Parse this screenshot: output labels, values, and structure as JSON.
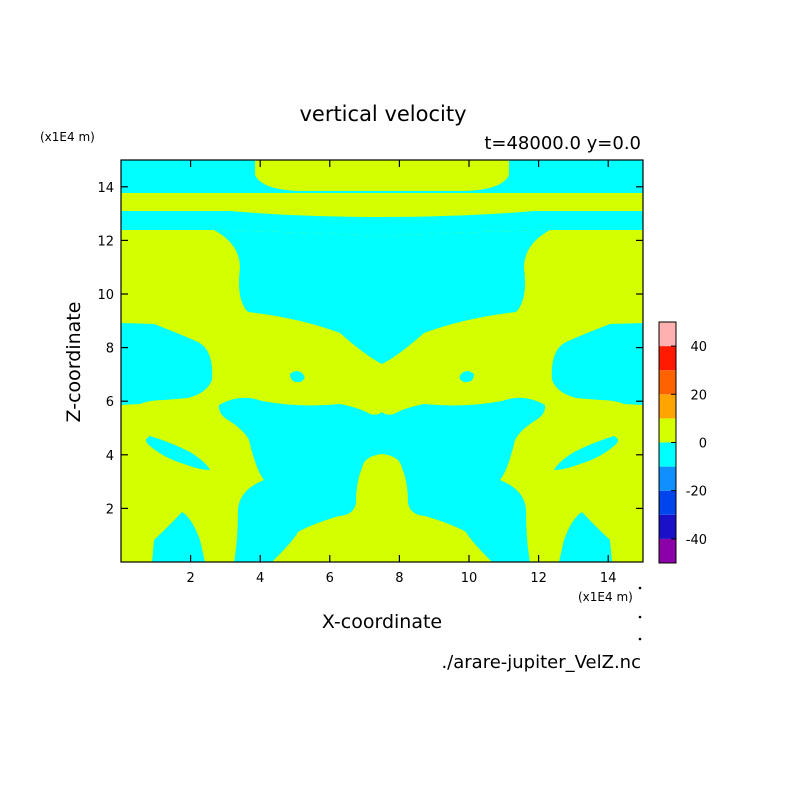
{
  "chart_data": {
    "type": "heatmap",
    "title": "vertical velocity",
    "subtitle": "t=48000.0 y=0.0",
    "xlabel": "X-coordinate",
    "ylabel": "Z-coordinate",
    "x_unit": "(x1E4 m)",
    "y_unit": "(x1E4 m)",
    "source": "./arare-jupiter_VelZ.nc",
    "xlim": [
      0,
      15
    ],
    "ylim": [
      0,
      15
    ],
    "xticks": [
      2,
      4,
      6,
      8,
      10,
      12,
      14
    ],
    "yticks": [
      2,
      4,
      6,
      8,
      10,
      12,
      14
    ],
    "colorbar": {
      "levels": [
        -50,
        -40,
        -30,
        -20,
        -10,
        0,
        10,
        20,
        30,
        40,
        50
      ],
      "tick_labels": [
        -40,
        -20,
        0,
        20,
        40
      ],
      "colors": [
        "#8b00a8",
        "#1a10c8",
        "#0044ee",
        "#1090ff",
        "#00ffff",
        "#d4ff00",
        "#ffa400",
        "#ff6200",
        "#ff1a00",
        "#ffb0b0"
      ]
    },
    "field_colors": {
      "upward": "#d4ff00",
      "downward": "#00ffff"
    },
    "field_note": "Field at y=0 is symmetric about x≈7.5; values lie in two bands only: 0 to 10 (yellow-green) and -10 to 0 (cyan)."
  }
}
